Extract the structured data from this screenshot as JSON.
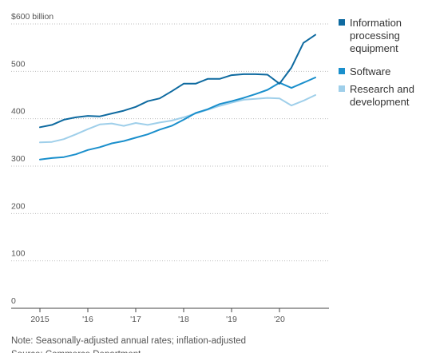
{
  "chart_data": {
    "type": "line",
    "ylabel_top": "$600 billion",
    "ylim": [
      0,
      600
    ],
    "y_ticks": [
      {
        "value": 600,
        "label": "$600 billion"
      },
      {
        "value": 500,
        "label": "500"
      },
      {
        "value": 400,
        "label": "400"
      },
      {
        "value": 300,
        "label": "300"
      },
      {
        "value": 200,
        "label": "200"
      },
      {
        "value": 100,
        "label": "100"
      },
      {
        "value": 0,
        "label": "0"
      }
    ],
    "xlim": [
      2015.0,
      2021.0
    ],
    "x_ticks": [
      {
        "value": 2015,
        "label": "2015"
      },
      {
        "value": 2016,
        "label": "'16"
      },
      {
        "value": 2017,
        "label": "'17"
      },
      {
        "value": 2018,
        "label": "'18"
      },
      {
        "value": 2019,
        "label": "'19"
      },
      {
        "value": 2020,
        "label": "'20"
      }
    ],
    "x": [
      2015.0,
      2015.25,
      2015.5,
      2015.75,
      2016.0,
      2016.25,
      2016.5,
      2016.75,
      2017.0,
      2017.25,
      2017.5,
      2017.75,
      2018.0,
      2018.25,
      2018.5,
      2018.75,
      2019.0,
      2019.25,
      2019.5,
      2019.75,
      2020.0,
      2020.25,
      2020.5,
      2020.75
    ],
    "series": [
      {
        "name": "Information processing equipment",
        "color": "#0e6aa0",
        "values": [
          382,
          387,
          398,
          403,
          406,
          405,
          411,
          417,
          425,
          437,
          443,
          458,
          474,
          474,
          484,
          484,
          492,
          494,
          494,
          493,
          474,
          508,
          560,
          577
        ]
      },
      {
        "name": "Software",
        "color": "#1a8fcc",
        "values": [
          314,
          317,
          319,
          325,
          334,
          340,
          348,
          353,
          360,
          367,
          377,
          385,
          398,
          412,
          420,
          431,
          437,
          444,
          452,
          461,
          476,
          465,
          476,
          487
        ]
      },
      {
        "name": "Research and development",
        "color": "#9fcfea",
        "values": [
          350,
          351,
          357,
          367,
          378,
          388,
          390,
          385,
          391,
          387,
          392,
          396,
          403,
          411,
          419,
          427,
          434,
          440,
          442,
          444,
          443,
          428,
          438,
          450
        ]
      }
    ],
    "legend": [
      {
        "lines": [
          "Information",
          "processing",
          "equipment"
        ],
        "color": "#0e6aa0"
      },
      {
        "lines": [
          "Software"
        ],
        "color": "#1a8fcc"
      },
      {
        "lines": [
          "Research and",
          "development"
        ],
        "color": "#9fcfea"
      }
    ],
    "grid": "horizontal-dotted",
    "legend_position": "right"
  },
  "note": "Note: Seasonally-adjusted annual rates; inflation-adjusted",
  "source_partial": "Source: Commerce Department"
}
